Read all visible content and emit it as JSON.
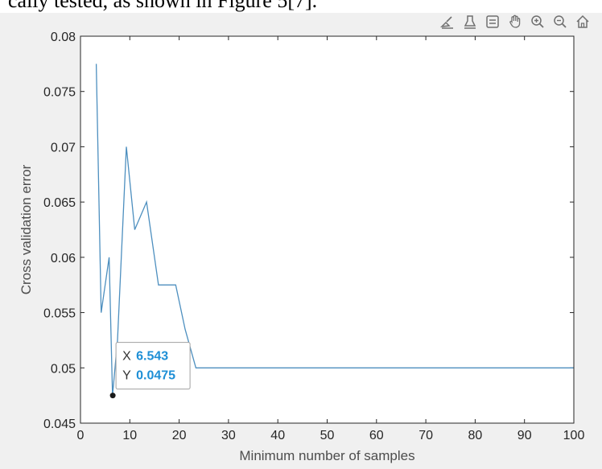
{
  "caption": "cally tested, as shown in Figure 5[7].",
  "toolbar": {
    "items": [
      {
        "name": "brush-icon"
      },
      {
        "name": "data-tips-icon"
      },
      {
        "name": "save-icon"
      },
      {
        "name": "pan-hand-icon"
      },
      {
        "name": "zoom-in-icon"
      },
      {
        "name": "zoom-out-icon"
      },
      {
        "name": "home-icon"
      }
    ]
  },
  "datatip": {
    "x_label": "X",
    "x_value": "6.543",
    "y_label": "Y",
    "y_value": "0.0475",
    "point": [
      6.543,
      0.0475
    ]
  },
  "chart_data": {
    "type": "line",
    "title": "",
    "xlabel": "Minimum number of samples",
    "ylabel": "Cross validation error",
    "xlim": [
      0,
      100
    ],
    "ylim": [
      0.045,
      0.08
    ],
    "xticks": [
      0,
      10,
      20,
      30,
      40,
      50,
      60,
      70,
      80,
      90,
      100
    ],
    "yticks": [
      0.045,
      0.05,
      0.055,
      0.06,
      0.065,
      0.07,
      0.075,
      0.08
    ],
    "ytick_labels": [
      "0.045",
      "0.05",
      "0.055",
      "0.06",
      "0.065",
      "0.07",
      "0.075",
      "0.08"
    ],
    "grid": false,
    "line_color": "#4d8fbf",
    "series": [
      {
        "x": [
          3.2,
          4.2,
          5.8,
          6.5,
          7.5,
          9.3,
          11.0,
          13.4,
          15.8,
          19.3,
          21.2,
          23.4,
          100
        ],
        "y": [
          0.0775,
          0.055,
          0.06,
          0.0475,
          0.0525,
          0.07,
          0.0625,
          0.065,
          0.0575,
          0.0575,
          0.0535,
          0.05,
          0.05
        ]
      }
    ]
  }
}
